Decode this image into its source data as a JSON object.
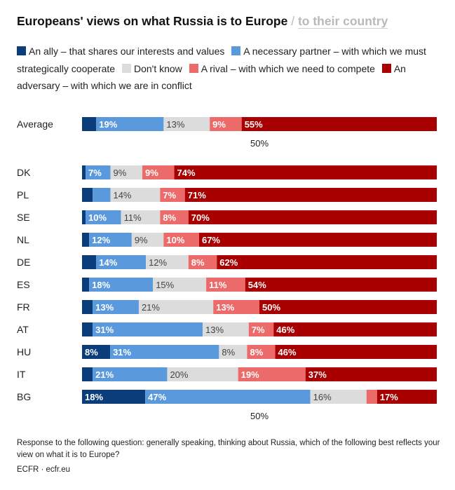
{
  "header": {
    "title": "Europeans' views on what Russia is to Europe",
    "separator": "/",
    "alt_view": "to their country"
  },
  "legend": [
    {
      "label": "An ally – that shares our interests and values",
      "color": "#0b3d7a"
    },
    {
      "label": "A necessary partner – with which we must strategically cooperate",
      "color": "#5b99dd"
    },
    {
      "label": "Don't know",
      "color": "#dcdcdc"
    },
    {
      "label": "A rival – with which we need to compete",
      "color": "#ec6a6a"
    },
    {
      "label": "An adversary – with which we are in conflict",
      "color": "#a80000"
    }
  ],
  "chart_data": {
    "type": "bar",
    "orientation": "horizontal",
    "stacked": true,
    "categories": [
      "Average",
      "DK",
      "PL",
      "SE",
      "NL",
      "DE",
      "ES",
      "FR",
      "AT",
      "HU",
      "IT",
      "BG"
    ],
    "series": [
      {
        "name": "An ally – that shares our interests and values",
        "values": [
          4,
          1,
          3,
          1,
          2,
          4,
          2,
          3,
          3,
          8,
          3,
          18
        ],
        "color": "#0b3d7a",
        "label_color": "#ffffff",
        "label_bold": true
      },
      {
        "name": "A necessary partner – with which we must strategically cooperate",
        "values": [
          19,
          7,
          5,
          10,
          12,
          14,
          18,
          13,
          31,
          31,
          21,
          47
        ],
        "color": "#5b99dd",
        "label_color": "#ffffff",
        "label_bold": true
      },
      {
        "name": "Don't know",
        "values": [
          13,
          9,
          14,
          11,
          9,
          12,
          15,
          21,
          13,
          8,
          20,
          16
        ],
        "color": "#dcdcdc",
        "label_color": "#444444",
        "label_bold": false
      },
      {
        "name": "A rival – with which we need to compete",
        "values": [
          9,
          9,
          7,
          8,
          10,
          8,
          11,
          13,
          7,
          8,
          19,
          3
        ],
        "color": "#ec6a6a",
        "label_color": "#ffffff",
        "label_bold": true
      },
      {
        "name": "An adversary – with which we are in conflict",
        "values": [
          55,
          74,
          71,
          70,
          67,
          62,
          54,
          50,
          46,
          46,
          37,
          17
        ],
        "color": "#a80000",
        "label_color": "#ffffff",
        "label_bold": true
      }
    ],
    "shown_labels": [
      [
        null,
        "19%",
        "13%",
        "9%",
        "55%"
      ],
      [
        null,
        "7%",
        "9%",
        "9%",
        "74%"
      ],
      [
        null,
        null,
        "14%",
        "7%",
        "71%"
      ],
      [
        null,
        "10%",
        "11%",
        "8%",
        "70%"
      ],
      [
        null,
        "12%",
        "9%",
        "10%",
        "67%"
      ],
      [
        null,
        "14%",
        "12%",
        "8%",
        "62%"
      ],
      [
        null,
        "18%",
        "15%",
        "11%",
        "54%"
      ],
      [
        null,
        "13%",
        "21%",
        "13%",
        "50%"
      ],
      [
        null,
        "31%",
        "13%",
        "7%",
        "46%"
      ],
      [
        "8%",
        "31%",
        "8%",
        "8%",
        "46%"
      ],
      [
        null,
        "21%",
        "20%",
        "19%",
        "37%"
      ],
      [
        "18%",
        "47%",
        "16%",
        null,
        "17%"
      ]
    ],
    "xlim": [
      0,
      100
    ],
    "reference_label": "50%"
  },
  "footer": {
    "note": "Response to the following question: generally speaking, thinking about Russia, which of the following best reflects your view on what it is to Europe?",
    "source": "ECFR · ecfr.eu"
  }
}
